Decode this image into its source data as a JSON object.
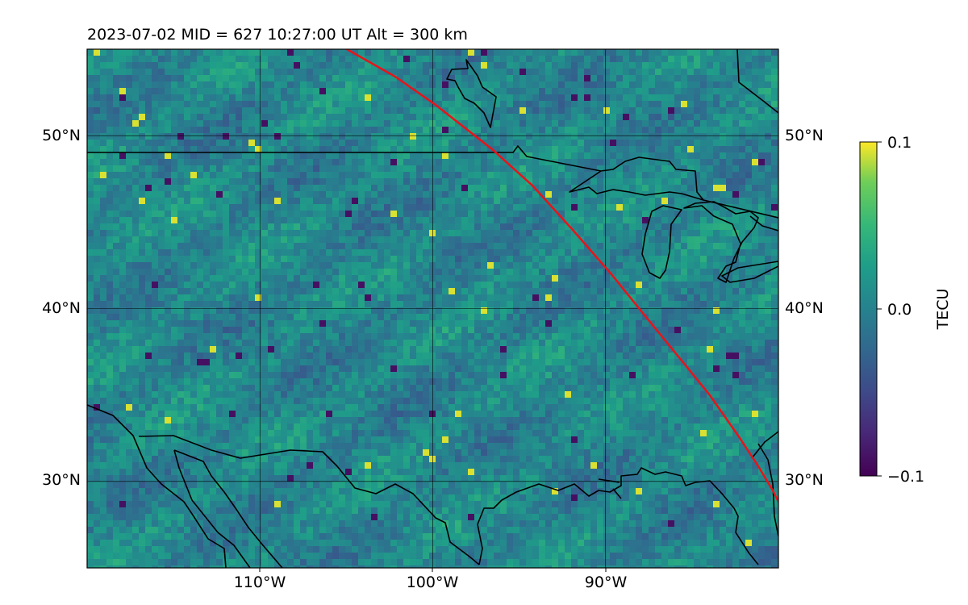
{
  "title": "2023-07-02  MID = 627    10:27:00  UT  Alt = 300 km",
  "map": {
    "lon_range": [
      -120,
      -80
    ],
    "lat_range": [
      25,
      55
    ],
    "lon_ticks": [
      {
        "value": -110,
        "label": "110°W"
      },
      {
        "value": -100,
        "label": "100°W"
      },
      {
        "value": -90,
        "label": "90°W"
      }
    ],
    "lat_ticks": [
      {
        "value": 30,
        "label": "30°N"
      },
      {
        "value": 40,
        "label": "40°N"
      },
      {
        "value": 50,
        "label": "50°N"
      }
    ],
    "grid": true
  },
  "colorbar": {
    "label": "TECU",
    "colormap": "viridis",
    "vmin": -0.1,
    "vmax": 0.1,
    "ticks": [
      {
        "value": 0.1,
        "label": "0.1"
      },
      {
        "value": 0.0,
        "label": "0.0"
      },
      {
        "value": -0.1,
        "label": "−0.1"
      }
    ]
  },
  "colors": {
    "track": "#e8141a",
    "coastline": "#000000",
    "grid": "#000000"
  }
}
